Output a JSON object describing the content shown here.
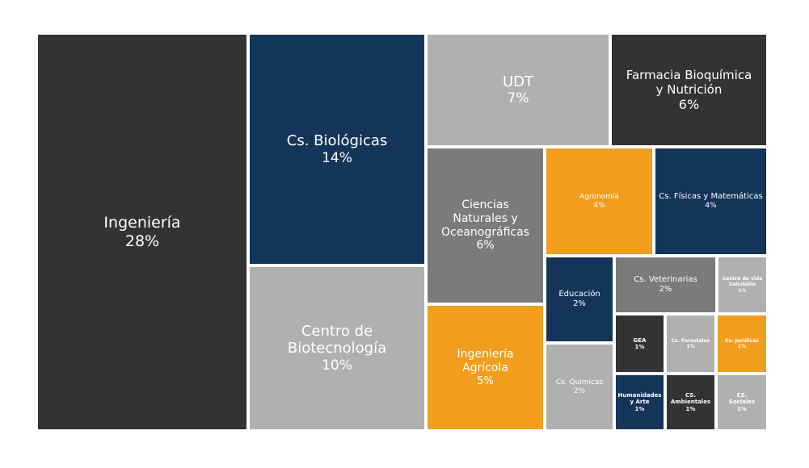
{
  "chart_data": {
    "type": "treemap",
    "title": "",
    "colors": {
      "dark": "#333333",
      "navy": "#14355a",
      "light": "#b0b0b0",
      "mid": "#7b7b7b",
      "orange": "#f19d1d"
    },
    "items": [
      {
        "name": "Ingeniería",
        "label": "28%",
        "value": 28,
        "color": "dark"
      },
      {
        "name": "Cs. Biológicas",
        "label": "14%",
        "value": 14,
        "color": "navy"
      },
      {
        "name": "Centro de Biotecnología",
        "label": "10%",
        "value": 10,
        "color": "light"
      },
      {
        "name": "UDT",
        "label": "7%",
        "value": 7,
        "color": "light"
      },
      {
        "name": "Farmacia Bioquímica y Nutrición",
        "label": "6%",
        "value": 6,
        "color": "dark"
      },
      {
        "name": "Ciencias Naturales y Oceanográficas",
        "label": "6%",
        "value": 6,
        "color": "mid"
      },
      {
        "name": "Agronomía",
        "label": "4%",
        "value": 4,
        "color": "orange"
      },
      {
        "name": "Cs. Físicas y Matemáticas",
        "label": "4%",
        "value": 4,
        "color": "navy"
      },
      {
        "name": "Ingeniería Agrícola",
        "label": "5%",
        "value": 5,
        "color": "orange"
      },
      {
        "name": "Educación",
        "label": "2%",
        "value": 2,
        "color": "navy"
      },
      {
        "name": "Cs. Veterinarias",
        "label": "2%",
        "value": 2,
        "color": "mid"
      },
      {
        "name": "Centro de vida Saludable",
        "label": "1%",
        "value": 1,
        "color": "light"
      },
      {
        "name": "Cs. Químicas",
        "label": "2%",
        "value": 2,
        "color": "light"
      },
      {
        "name": "GEA",
        "label": "1%",
        "value": 1,
        "color": "dark"
      },
      {
        "name": "Cs. Forestales",
        "label": "1%",
        "value": 1,
        "color": "light"
      },
      {
        "name": "Cs. Jurídicas",
        "label": "1%",
        "value": 1,
        "color": "orange"
      },
      {
        "name": "Humanidades y Arte",
        "label": "1%",
        "value": 1,
        "color": "navy"
      },
      {
        "name": "CS. Ambientales",
        "label": "1%",
        "value": 1,
        "color": "dark"
      },
      {
        "name": "CS. Sociales",
        "label": "1%",
        "value": 1,
        "color": "light"
      }
    ]
  }
}
